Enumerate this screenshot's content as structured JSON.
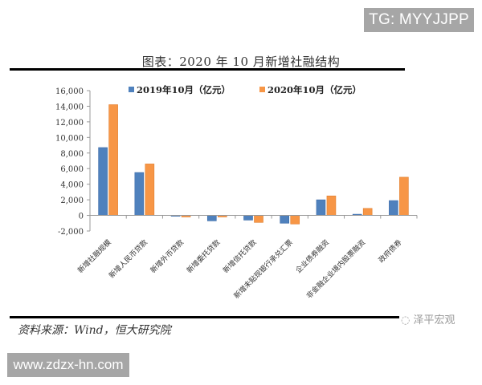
{
  "watermarks": {
    "tg": "TG: MYYJJPP",
    "site": "www.zdzx-hn.com",
    "wechat": "泽平宏观"
  },
  "figure": {
    "title": "图表：2020 年 10 月新增社融结构",
    "source": "资料来源：Wind，恒大研究院"
  },
  "colors": {
    "series_2019": "#4f81bd",
    "series_2020": "#f79646",
    "axis": "#999999"
  },
  "chart_data": {
    "type": "bar",
    "title": "图表：2020 年 10 月新增社融结构",
    "xlabel": "",
    "ylabel": "",
    "ylim": [
      -2000,
      16000
    ],
    "yticks": [
      "16,000",
      "14,000",
      "12,000",
      "10,000",
      "8,000",
      "6,000",
      "4,000",
      "2,000",
      "0",
      "-2,000"
    ],
    "grid": false,
    "legend_position": "top",
    "categories": [
      "新增社融规模",
      "新增人民币贷款",
      "新增外币贷款",
      "新增委托贷款",
      "新增信托贷款",
      "新增未贴现银行承兑汇票",
      "企业债券融资",
      "非金融企业境内股票融资",
      "政府债券"
    ],
    "series": [
      {
        "name": "2019年10月（亿元）",
        "values": [
          8700,
          5500,
          -10,
          -700,
          -600,
          -1000,
          2000,
          150,
          1900
        ]
      },
      {
        "name": "2020年10月（亿元）",
        "values": [
          14200,
          6600,
          -200,
          -200,
          -900,
          -1100,
          2500,
          900,
          4900
        ]
      }
    ]
  }
}
